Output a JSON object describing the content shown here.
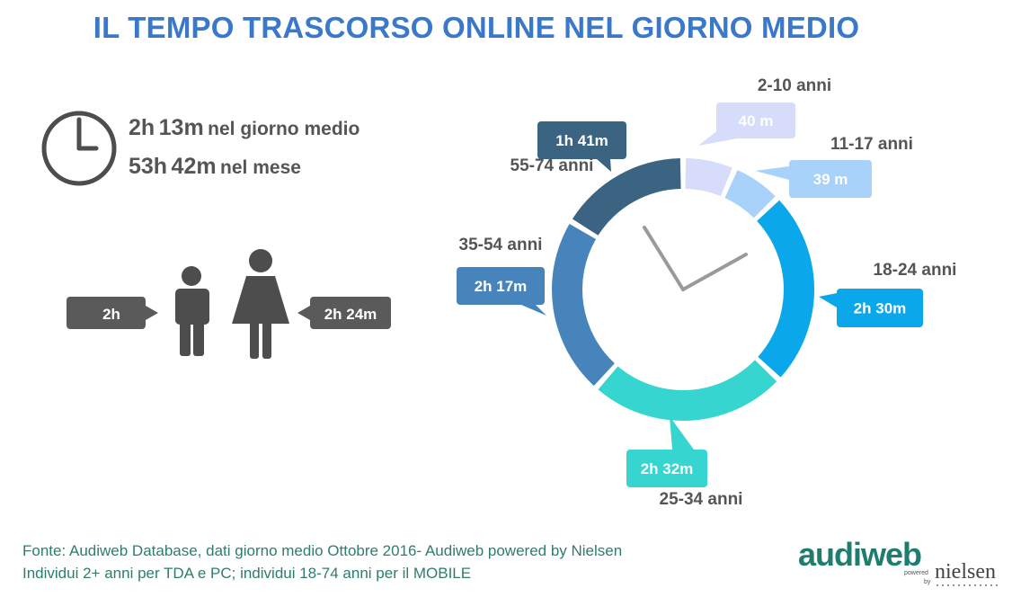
{
  "title": "IL TEMPO TRASCORSO ONLINE NEL GIORNO MEDIO",
  "stats": {
    "day_hours": "2h",
    "day_minutes": "13m",
    "day_suffix": "nel giorno medio",
    "month_hours": "53h",
    "month_minutes": "42m",
    "month_suffix": "nel mese"
  },
  "gender": {
    "male_value": "2h",
    "female_value": "2h 24m"
  },
  "chart_data": {
    "type": "donut",
    "unit": "minutes",
    "series": [
      {
        "category": "2-10 anni",
        "label": "40 m",
        "value": 40,
        "color": "#d6dcfa"
      },
      {
        "category": "11-17 anni",
        "label": "39 m",
        "value": 39,
        "color": "#a9d2fa"
      },
      {
        "category": "18-24 anni",
        "label": "2h 30m",
        "value": 150,
        "color": "#0aa7ea"
      },
      {
        "category": "25-34 anni",
        "label": "2h 32m",
        "value": 152,
        "color": "#36d5cf"
      },
      {
        "category": "35-54 anni",
        "label": "2h 17m",
        "value": 137,
        "color": "#4684bb"
      },
      {
        "category": "55-74 anni",
        "label": "1h 41m",
        "value": 101,
        "color": "#3b6482"
      }
    ]
  },
  "colors": {
    "title": "#3a78c9",
    "stat_text": "#555555",
    "gender_bubble": "#5a5a5a",
    "footer_text": "#2e7d6d"
  },
  "footer": {
    "source_line1": "Fonte: Audiweb Database, dati giorno medio Ottobre 2016- Audiweb powered by Nielsen",
    "source_line2": "Individui 2+ anni per TDA e PC; individui 18-74 anni per il MOBILE"
  },
  "logo": {
    "name": "audiweb",
    "powered": "powered",
    "by": "by",
    "partner": "nielsen"
  }
}
